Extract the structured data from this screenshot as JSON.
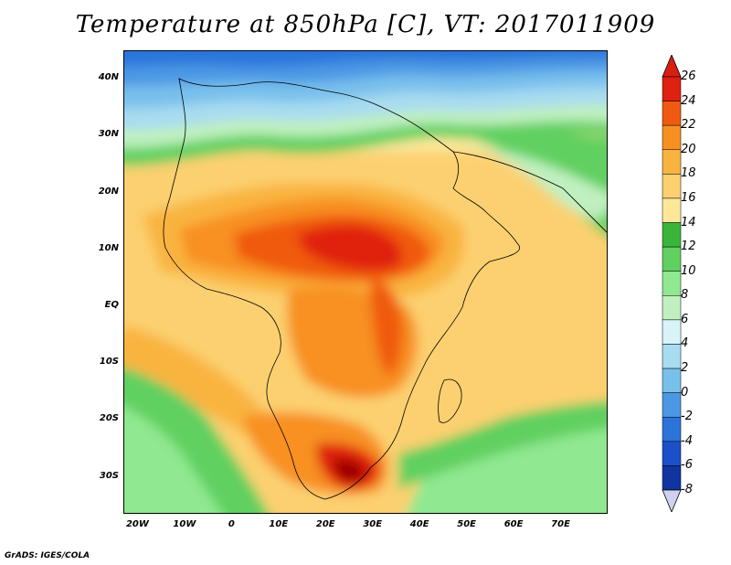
{
  "title": "Temperature at 850hPa [C], VT: 2017011909",
  "footer": "GrADS: IGES/COLA",
  "map": {
    "lon_range": [
      -23,
      80
    ],
    "lat_range": [
      -36.5,
      45
    ]
  },
  "lat_ticks": [
    {
      "value": 40,
      "label": "40N"
    },
    {
      "value": 30,
      "label": "30N"
    },
    {
      "value": 20,
      "label": "20N"
    },
    {
      "value": 10,
      "label": "10N"
    },
    {
      "value": 0,
      "label": "EQ"
    },
    {
      "value": -10,
      "label": "10S"
    },
    {
      "value": -20,
      "label": "20S"
    },
    {
      "value": -30,
      "label": "30S"
    }
  ],
  "lon_ticks": [
    {
      "value": -20,
      "label": "20W"
    },
    {
      "value": -10,
      "label": "10W"
    },
    {
      "value": 0,
      "label": "0"
    },
    {
      "value": 10,
      "label": "10E"
    },
    {
      "value": 20,
      "label": "20E"
    },
    {
      "value": 30,
      "label": "30E"
    },
    {
      "value": 40,
      "label": "40E"
    },
    {
      "value": 50,
      "label": "50E"
    },
    {
      "value": 60,
      "label": "60E"
    },
    {
      "value": 70,
      "label": "70E"
    }
  ],
  "colorbar": {
    "labels": [
      "26",
      "24",
      "22",
      "20",
      "18",
      "16",
      "14",
      "12",
      "10",
      "8",
      "6",
      "4",
      "2",
      "0",
      "-2",
      "-4",
      "-6",
      "-8"
    ],
    "colors": [
      "#a00000",
      "#e02010",
      "#f05a10",
      "#f89020",
      "#f9b440",
      "#fcd070",
      "#fde89a",
      "#3ab53a",
      "#60d060",
      "#90e890",
      "#c0f0c0",
      "#d8f4f8",
      "#a8dcf0",
      "#78c0ec",
      "#4c98e4",
      "#2c74dc",
      "#1c50c8",
      "#1034a0",
      "#0c2070"
    ],
    "top_arrow_color": "#d82010",
    "bottom_arrow_color": "#d0d0f0"
  }
}
